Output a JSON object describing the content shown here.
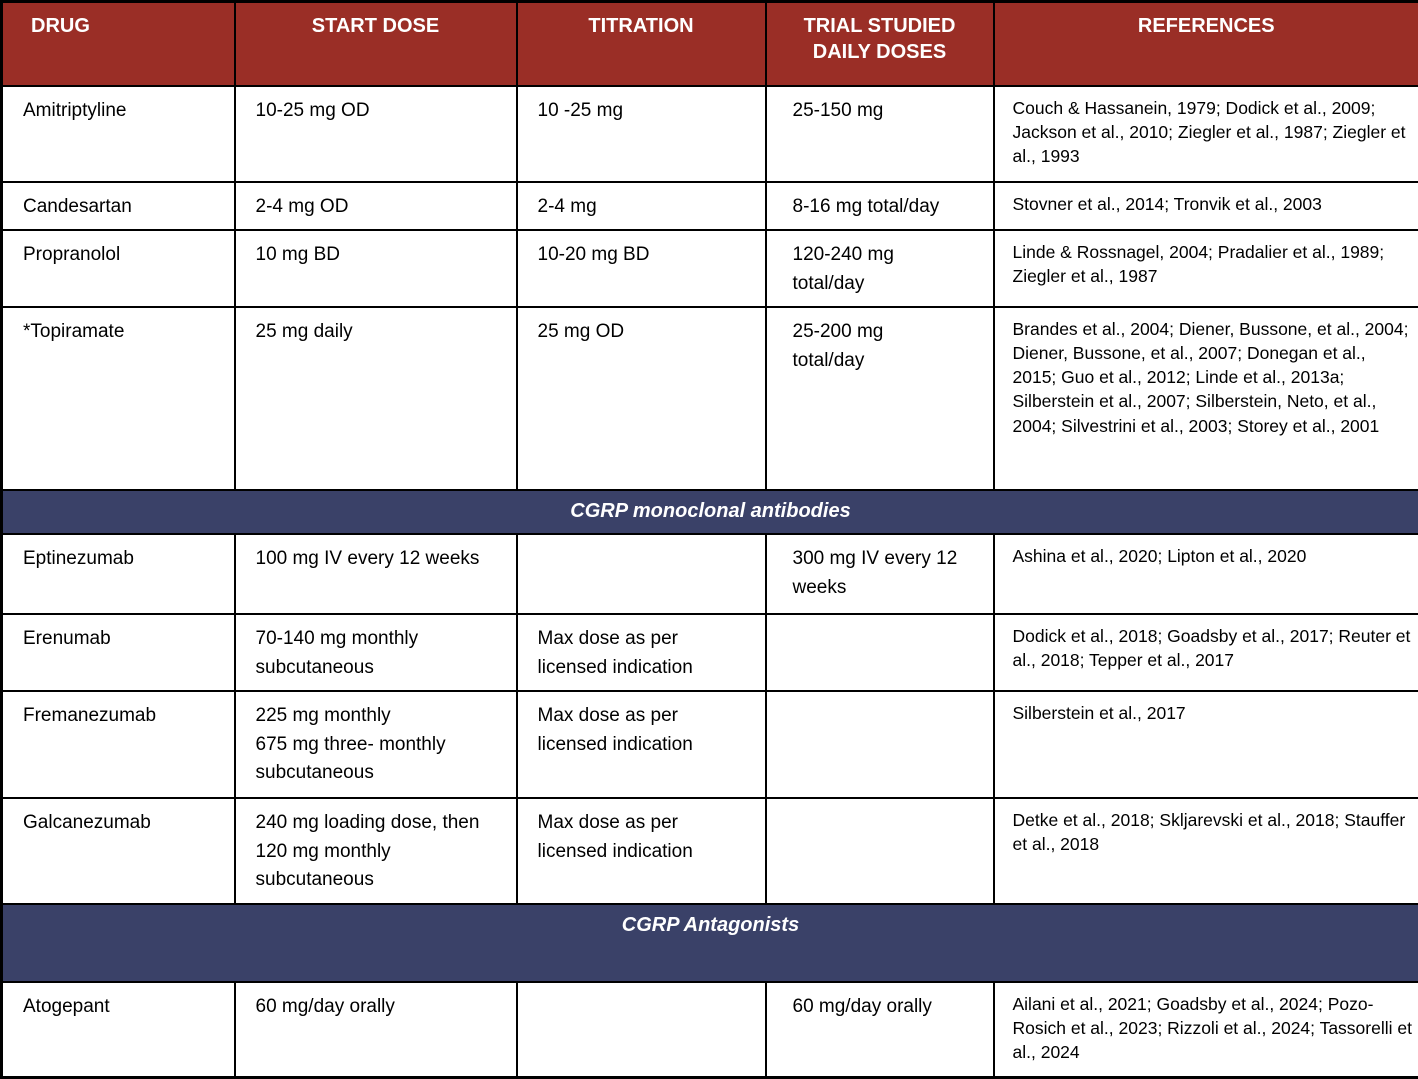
{
  "table": {
    "headers": [
      "DRUG",
      "START DOSE",
      "TITRATION",
      "TRIAL STUDIED\nDAILY DOSES",
      "REFERENCES"
    ],
    "rows": [
      {
        "type": "data",
        "drug": "Amitriptyline",
        "start_dose": "10-25 mg OD",
        "titration": "10 -25 mg",
        "trial_doses": "25-150 mg",
        "references": "Couch & Hassanein, 1979; Dodick et al., 2009; Jackson et al., 2010; Ziegler et al., 1987; Ziegler et al., 1993"
      },
      {
        "type": "data",
        "drug": "Candesartan",
        "start_dose": "2-4 mg OD",
        "titration": "2-4 mg",
        "trial_doses": "8-16 mg total/day",
        "references": "Stovner et al., 2014; Tronvik et al., 2003"
      },
      {
        "type": "data",
        "drug": "Propranolol",
        "start_dose": "10 mg BD",
        "titration": "10-20 mg BD",
        "trial_doses": "120-240 mg\ntotal/day",
        "references": "Linde & Rossnagel, 2004; Pradalier et al., 1989; Ziegler et al., 1987"
      },
      {
        "type": "data",
        "drug": "*Topiramate",
        "start_dose": "25 mg daily",
        "titration": "25 mg OD",
        "trial_doses": "25-200 mg\ntotal/day",
        "references": "Brandes et al., 2004; Diener, Bussone, et al., 2004; Diener, Bussone, et al., 2007; Donegan et al., 2015; Guo et al., 2012; Linde et al., 2013a; Silberstein et al., 2007; Silberstein, Neto, et al., 2004; Silvestrini et al., 2003; Storey et al., 2001"
      },
      {
        "type": "section",
        "label": "CGRP monoclonal antibodies"
      },
      {
        "type": "data",
        "drug": "Eptinezumab",
        "start_dose": "100 mg IV every 12 weeks",
        "titration": "",
        "trial_doses": "300 mg IV every 12 weeks",
        "references": "Ashina et al., 2020; Lipton et al., 2020"
      },
      {
        "type": "data",
        "drug": "Erenumab",
        "start_dose": "70-140 mg monthly subcutaneous",
        "titration": "Max dose as per licensed indication",
        "trial_doses": "",
        "references": "Dodick et al., 2018; Goadsby et al., 2017; Reuter et al., 2018; Tepper et al., 2017"
      },
      {
        "type": "data",
        "drug": "Fremanezumab",
        "start_dose": "225 mg monthly\n675 mg three- monthly\nsubcutaneous",
        "titration": "Max dose as per licensed indication",
        "trial_doses": "",
        "references": "Silberstein et al., 2017"
      },
      {
        "type": "data",
        "drug": "Galcanezumab",
        "start_dose": "240 mg loading dose, then 120 mg monthly subcutaneous",
        "titration": "Max dose as per licensed indication",
        "trial_doses": "",
        "references": "Detke et al., 2018; Skljarevski et al., 2018; Stauffer et al., 2018"
      },
      {
        "type": "section",
        "label": "CGRP Antagonists"
      },
      {
        "type": "data",
        "drug": "Atogepant",
        "start_dose": "60 mg/day orally",
        "titration": "",
        "trial_doses": "60 mg/day orally",
        "references": "Ailani et al., 2021; Goadsby et al., 2024; Pozo-Rosich et al., 2023; Rizzoli et al., 2024; Tassorelli et al., 2024"
      }
    ]
  },
  "colors": {
    "header_bg": "#9A2E26",
    "section_bg": "#3A4168",
    "border": "#000000",
    "header_text": "#FFFFFF",
    "body_text": "#000000"
  }
}
